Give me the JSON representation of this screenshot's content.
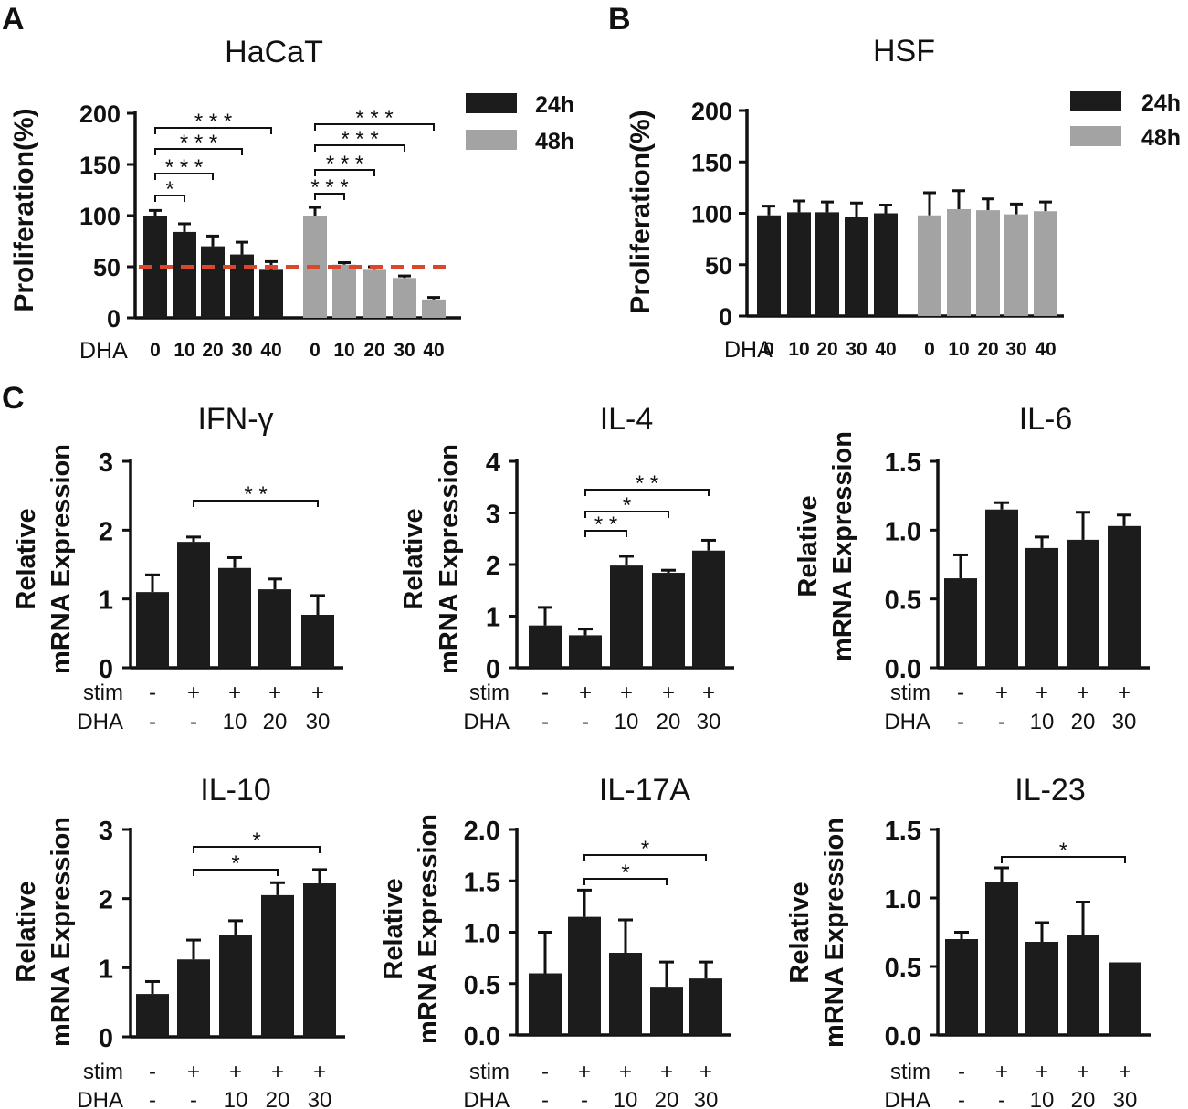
{
  "chart_data": [
    {
      "id": "A",
      "panel": "A",
      "type": "bar",
      "title": "HaCaT",
      "ylabel": "Proliferation(%)",
      "ylim": [
        0,
        200
      ],
      "yticks": [
        0,
        50,
        100,
        150,
        200
      ],
      "xrow_label": "DHA",
      "categories": [
        "0",
        "10",
        "20",
        "30",
        "40"
      ],
      "series": [
        {
          "name": "24h",
          "color": "#1c1c1c",
          "values": [
            100,
            84,
            70,
            62,
            47
          ],
          "errors": [
            5,
            8,
            10,
            12,
            8
          ]
        },
        {
          "name": "48h",
          "color": "#a3a3a3",
          "values": [
            100,
            52,
            47,
            39,
            18
          ],
          "errors": [
            8,
            2,
            3,
            2,
            2
          ]
        }
      ],
      "reference_line": {
        "value": 50,
        "color": "#d9482b",
        "style": "dashed"
      },
      "significance": [
        {
          "series": 0,
          "from": 0,
          "to": 1,
          "label": "*"
        },
        {
          "series": 0,
          "from": 0,
          "to": 2,
          "label": "***"
        },
        {
          "series": 0,
          "from": 0,
          "to": 3,
          "label": "***"
        },
        {
          "series": 0,
          "from": 0,
          "to": 4,
          "label": "***"
        },
        {
          "series": 1,
          "from": 0,
          "to": 1,
          "label": "***"
        },
        {
          "series": 1,
          "from": 0,
          "to": 2,
          "label": "***"
        },
        {
          "series": 1,
          "from": 0,
          "to": 3,
          "label": "***"
        },
        {
          "series": 1,
          "from": 0,
          "to": 4,
          "label": "***"
        }
      ],
      "legend": [
        "24h",
        "48h"
      ]
    },
    {
      "id": "B",
      "panel": "B",
      "type": "bar",
      "title": "HSF",
      "ylabel": "Proliferation(%)",
      "ylim": [
        0,
        200
      ],
      "yticks": [
        0,
        50,
        100,
        150,
        200
      ],
      "xrow_label": "DHA",
      "categories": [
        "0",
        "10",
        "20",
        "30",
        "40"
      ],
      "series": [
        {
          "name": "24h",
          "color": "#1c1c1c",
          "values": [
            98,
            101,
            101,
            96,
            100
          ],
          "errors": [
            9,
            11,
            10,
            14,
            8
          ]
        },
        {
          "name": "48h",
          "color": "#a3a3a3",
          "values": [
            98,
            104,
            103,
            99,
            102
          ],
          "errors": [
            22,
            18,
            11,
            10,
            9
          ]
        }
      ],
      "significance": [],
      "legend": [
        "24h",
        "48h"
      ]
    },
    {
      "id": "C1",
      "panel": "C",
      "type": "bar",
      "title": "IFN-γ",
      "ylabel": [
        "Relative",
        "mRNA Expression"
      ],
      "ylim": [
        0,
        3
      ],
      "yticks": [
        "0",
        "1",
        "2",
        "3"
      ],
      "rows": [
        {
          "label": "stim",
          "values": [
            "-",
            "+",
            "+",
            "+",
            "+"
          ]
        },
        {
          "label": "DHA",
          "values": [
            "-",
            "-",
            "10",
            "20",
            "30"
          ]
        }
      ],
      "values": [
        1.1,
        1.83,
        1.45,
        1.14,
        0.77
      ],
      "errors": [
        0.25,
        0.07,
        0.15,
        0.15,
        0.28
      ],
      "significance": [
        {
          "from": 1,
          "to": 4,
          "label": "**"
        }
      ]
    },
    {
      "id": "C2",
      "panel": "C",
      "type": "bar",
      "title": "IL-4",
      "ylabel": [
        "Relative",
        "mRNA Expression"
      ],
      "ylim": [
        0,
        4
      ],
      "yticks": [
        "0",
        "1",
        "2",
        "3",
        "4"
      ],
      "rows": [
        {
          "label": "stim",
          "values": [
            "-",
            "+",
            "+",
            "+",
            "+"
          ]
        },
        {
          "label": "DHA",
          "values": [
            "-",
            "-",
            "10",
            "20",
            "30"
          ]
        }
      ],
      "values": [
        0.82,
        0.63,
        1.98,
        1.84,
        2.27
      ],
      "errors": [
        0.35,
        0.12,
        0.18,
        0.05,
        0.2
      ],
      "significance": [
        {
          "from": 1,
          "to": 2,
          "label": "**"
        },
        {
          "from": 1,
          "to": 3,
          "label": "*"
        },
        {
          "from": 1,
          "to": 4,
          "label": "**"
        }
      ]
    },
    {
      "id": "C3",
      "panel": "C",
      "type": "bar",
      "title": "IL-6",
      "ylabel": [
        "Relative",
        "mRNA Expression"
      ],
      "ylim": [
        0,
        1.5
      ],
      "yticks": [
        "0.0",
        "0.5",
        "1.0",
        "1.5"
      ],
      "rows": [
        {
          "label": "stim",
          "values": [
            "-",
            "+",
            "+",
            "+",
            "+"
          ]
        },
        {
          "label": "DHA",
          "values": [
            "-",
            "-",
            "10",
            "20",
            "30"
          ]
        }
      ],
      "values": [
        0.65,
        1.15,
        0.87,
        0.93,
        1.03
      ],
      "errors": [
        0.17,
        0.05,
        0.08,
        0.2,
        0.08
      ],
      "significance": []
    },
    {
      "id": "C4",
      "panel": "C",
      "type": "bar",
      "title": "IL-10",
      "ylabel": [
        "Relative",
        "mRNA Expression"
      ],
      "ylim": [
        0,
        3
      ],
      "yticks": [
        "0",
        "1",
        "2",
        "3"
      ],
      "rows": [
        {
          "label": "stim",
          "values": [
            "-",
            "+",
            "+",
            "+",
            "+"
          ]
        },
        {
          "label": "DHA",
          "values": [
            "-",
            "-",
            "10",
            "20",
            "30"
          ]
        }
      ],
      "values": [
        0.62,
        1.12,
        1.48,
        2.05,
        2.22
      ],
      "errors": [
        0.18,
        0.28,
        0.2,
        0.18,
        0.2
      ],
      "significance": [
        {
          "from": 1,
          "to": 3,
          "label": "*"
        },
        {
          "from": 1,
          "to": 4,
          "label": "*"
        }
      ]
    },
    {
      "id": "C5",
      "panel": "C",
      "type": "bar",
      "title": "IL-17A",
      "ylabel": [
        "Relative",
        "mRNA Expression"
      ],
      "ylim": [
        0,
        2
      ],
      "yticks": [
        "0.0",
        "0.5",
        "1.0",
        "1.5",
        "2.0"
      ],
      "rows": [
        {
          "label": "stim",
          "values": [
            "-",
            "+",
            "+",
            "+",
            "+"
          ]
        },
        {
          "label": "DHA",
          "values": [
            "-",
            "-",
            "10",
            "20",
            "30"
          ]
        }
      ],
      "values": [
        0.6,
        1.15,
        0.8,
        0.47,
        0.55
      ],
      "errors": [
        0.4,
        0.26,
        0.32,
        0.24,
        0.16
      ],
      "significance": [
        {
          "from": 1,
          "to": 3,
          "label": "*"
        },
        {
          "from": 1,
          "to": 4,
          "label": "*"
        }
      ]
    },
    {
      "id": "C6",
      "panel": "C",
      "type": "bar",
      "title": "IL-23",
      "ylabel": [
        "Relative",
        "mRNA Expression"
      ],
      "ylim": [
        0,
        1.5
      ],
      "yticks": [
        "0.0",
        "0.5",
        "1.0",
        "1.5"
      ],
      "rows": [
        {
          "label": "stim",
          "values": [
            "-",
            "+",
            "+",
            "+",
            "+"
          ]
        },
        {
          "label": "DHA",
          "values": [
            "-",
            "-",
            "10",
            "20",
            "30"
          ]
        }
      ],
      "values": [
        0.7,
        1.12,
        0.68,
        0.73,
        0.53
      ],
      "errors": [
        0.05,
        0.1,
        0.14,
        0.24,
        0.0
      ],
      "significance": [
        {
          "from": 1,
          "to": 4,
          "label": "*"
        }
      ]
    }
  ]
}
